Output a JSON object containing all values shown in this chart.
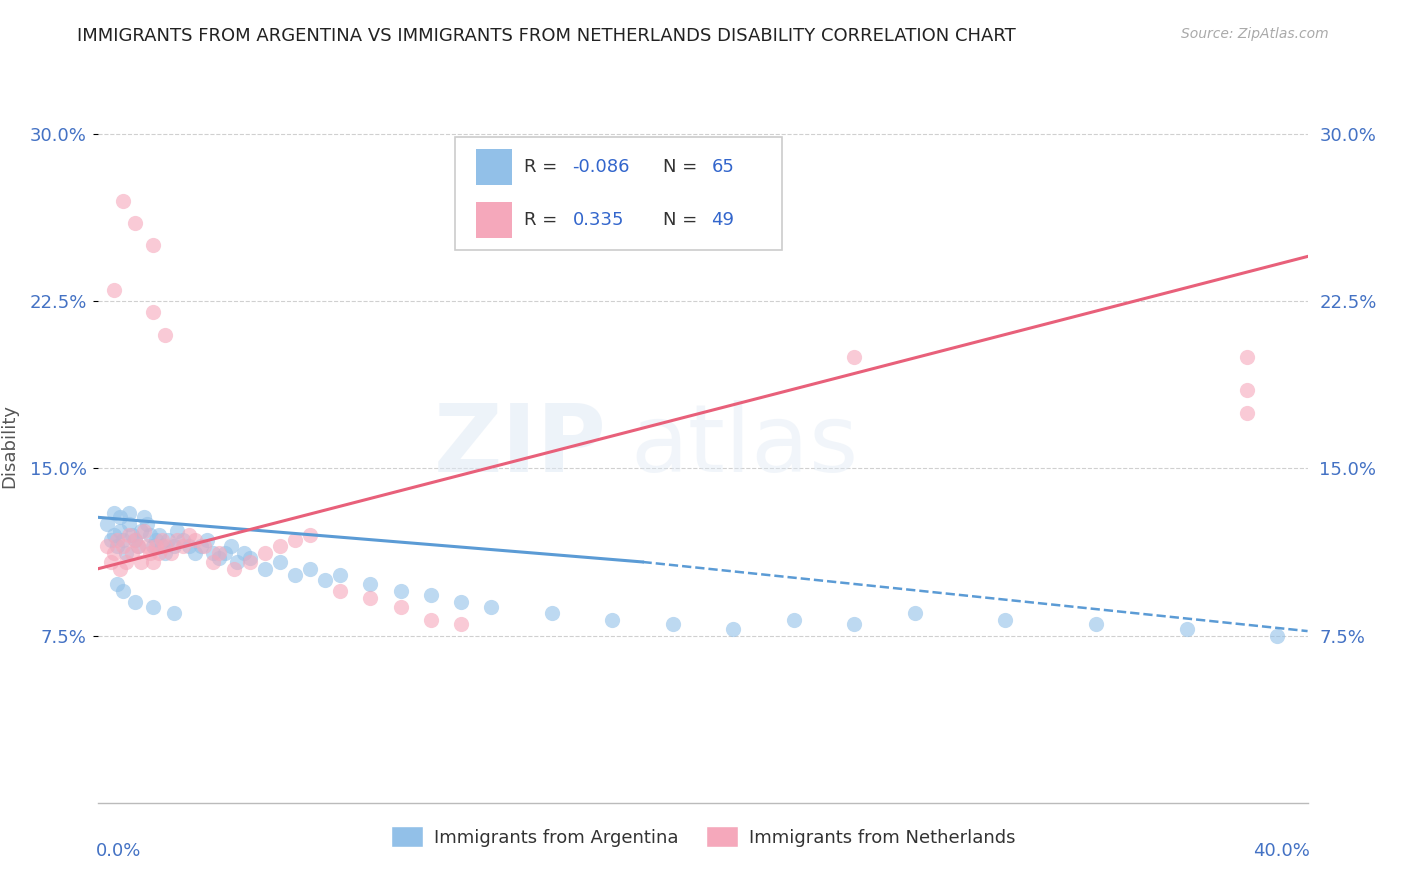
{
  "title": "IMMIGRANTS FROM ARGENTINA VS IMMIGRANTS FROM NETHERLANDS DISABILITY CORRELATION CHART",
  "source": "Source: ZipAtlas.com",
  "ylabel": "Disability",
  "xlim": [
    0.0,
    0.4
  ],
  "ylim": [
    0.0,
    0.32
  ],
  "argentina_color": "#92c0e8",
  "netherlands_color": "#f5a8bb",
  "argentina_line_color": "#5b9bd5",
  "netherlands_line_color": "#e8607a",
  "argentina_R": -0.086,
  "argentina_N": 65,
  "netherlands_R": 0.335,
  "netherlands_N": 49,
  "background_color": "#ffffff",
  "ytick_vals": [
    0.075,
    0.15,
    0.225,
    0.3
  ],
  "ytick_labels": [
    "7.5%",
    "15.0%",
    "22.5%",
    "30.0%"
  ],
  "axis_label_color": "#4472c4",
  "grid_color": "#d0d0d0",
  "legend_box_color": "#cccccc",
  "legend_R_N_color": "#3366cc",
  "title_color": "#222222",
  "source_color": "#aaaaaa",
  "ylabel_color": "#555555",
  "neth_line_start_x": 0.0,
  "neth_line_start_y": 0.105,
  "neth_line_end_x": 0.4,
  "neth_line_end_y": 0.245,
  "arg_line_start_x": 0.0,
  "arg_line_start_y": 0.128,
  "arg_line_solid_end_x": 0.18,
  "arg_line_solid_end_y": 0.108,
  "arg_line_dash_end_x": 0.4,
  "arg_line_dash_end_y": 0.077
}
